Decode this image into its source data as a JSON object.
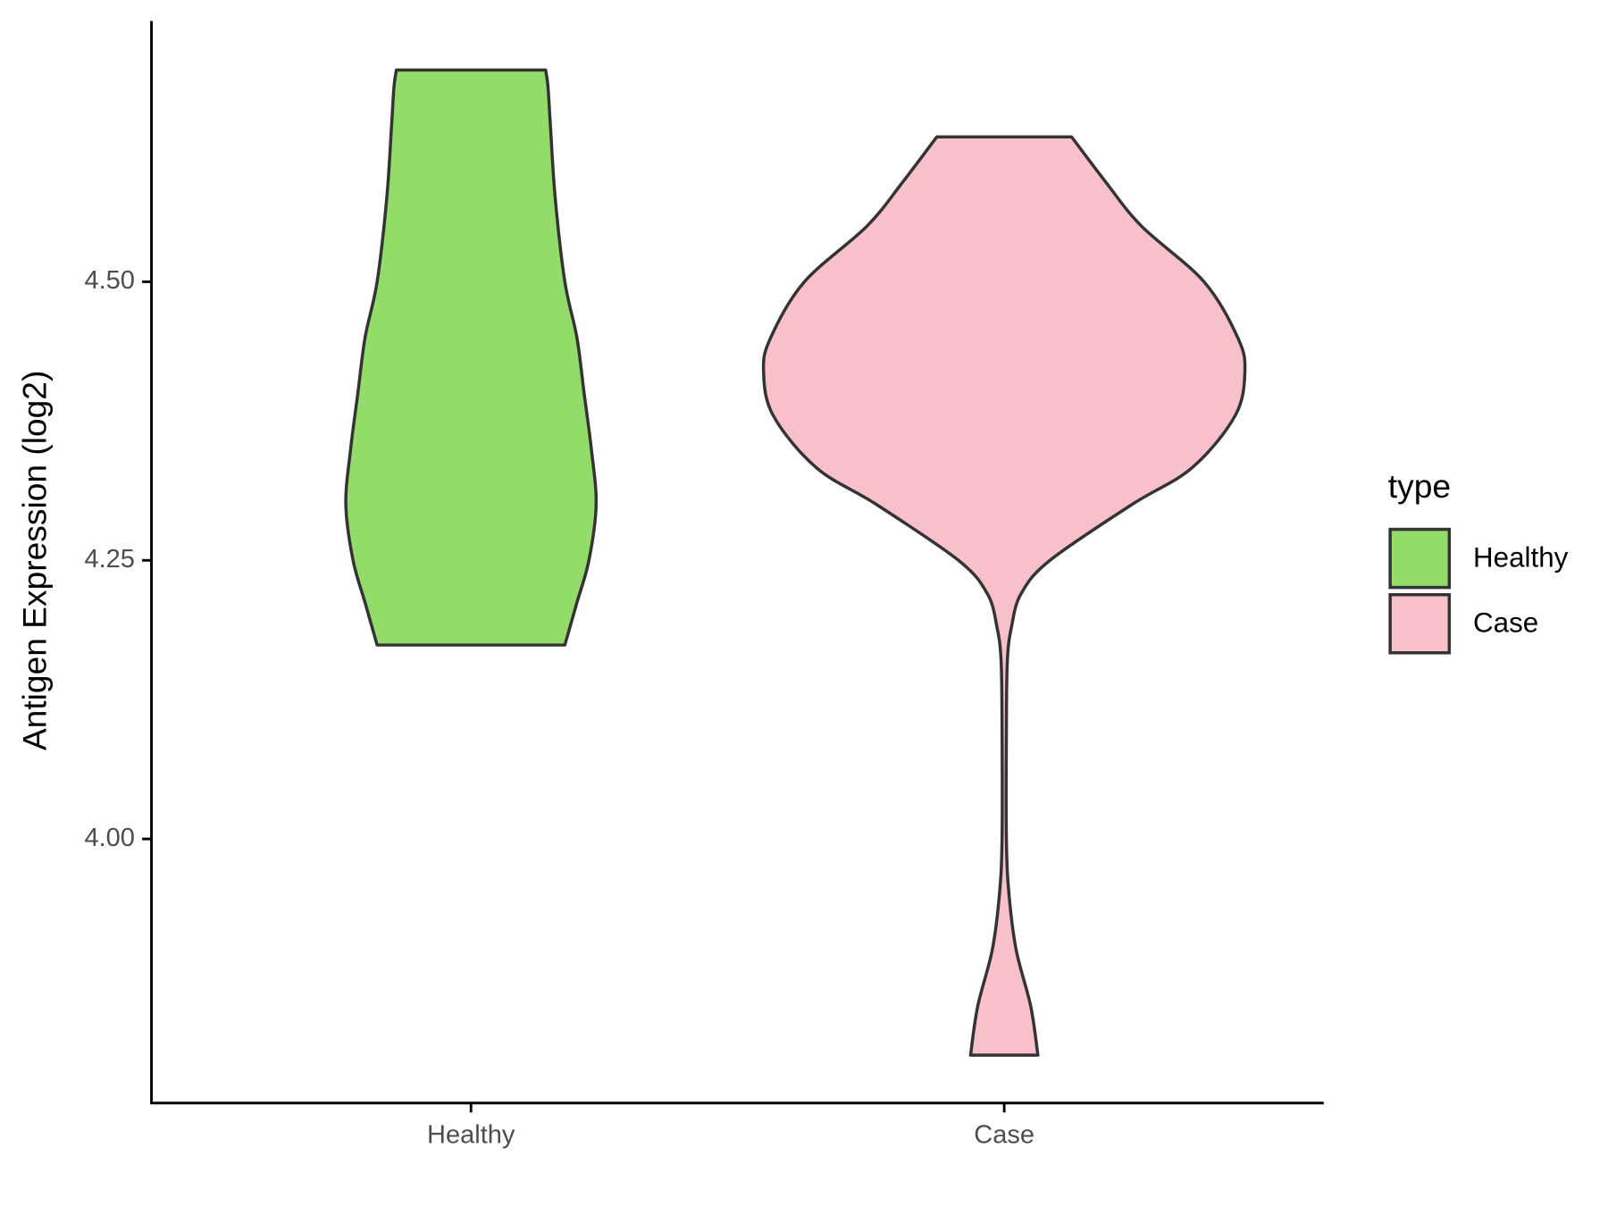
{
  "chart_data": {
    "type": "violin",
    "y_label": "Antigen Expression (log2)",
    "categories": [
      "Healthy",
      "Case"
    ],
    "ylim": [
      3.763,
      4.734
    ],
    "yticks": [
      {
        "value": 4,
        "label": "4.00"
      },
      {
        "value": 4.25,
        "label": "4.25"
      },
      {
        "value": 4.5,
        "label": "4.50"
      }
    ],
    "legend": {
      "title": "type",
      "position": "right"
    },
    "series": [
      {
        "name": "Healthy",
        "color": "#93dc6a",
        "y": [
          4.69,
          4.675,
          4.64,
          4.575,
          4.5,
          4.45,
          4.4,
          4.35,
          4.3,
          4.25,
          4.212,
          4.174
        ],
        "density": [
          0.31,
          0.32,
          0.33,
          0.35,
          0.39,
          0.44,
          0.47,
          0.5,
          0.52,
          0.49,
          0.44,
          0.39
        ]
      },
      {
        "name": "Case",
        "color": "#f7c0cb",
        "y": [
          4.63,
          4.59,
          4.55,
          4.5,
          4.45,
          4.42,
          4.38,
          4.333,
          4.3,
          4.25,
          4.22,
          4.19,
          4.16,
          4.1,
          4.0,
          3.95,
          3.9,
          3.85,
          3.806
        ],
        "density": [
          0.28,
          0.42,
          0.57,
          0.83,
          0.97,
          1.0,
          0.96,
          0.78,
          0.53,
          0.19,
          0.07,
          0.03,
          0.013,
          0.009,
          0.009,
          0.02,
          0.05,
          0.11,
          0.14
        ]
      }
    ]
  }
}
